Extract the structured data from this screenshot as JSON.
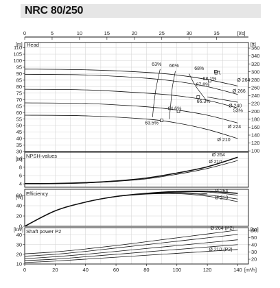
{
  "title": "NRC 80/250",
  "chart_data": [
    {
      "type": "line",
      "name": "head",
      "panel_label": "Head",
      "y_unit_left": "[m]",
      "y_unit_right": "[ft]",
      "top_axis_unit": "[l/s]",
      "top_ticks": [
        0,
        5,
        10,
        15,
        20,
        25,
        30,
        35
      ],
      "top_xlim": [
        0,
        40.8
      ],
      "xlim": [
        0,
        147
      ],
      "ylim": [
        30,
        114
      ],
      "y_ticks": [
        30,
        35,
        40,
        45,
        50,
        55,
        60,
        65,
        70,
        75,
        80,
        85,
        90,
        95,
        100,
        105,
        110
      ],
      "right_ticks": [
        100,
        120,
        140,
        160,
        180,
        200,
        220,
        240,
        260,
        280,
        300,
        320,
        340,
        360
      ],
      "series": [
        {
          "name": "Ø 264",
          "x": [
            0,
            40,
            80,
            100,
            120,
            140
          ],
          "y": [
            93.5,
            93,
            91,
            89,
            85.5,
            80.5
          ]
        },
        {
          "name": "Ø 266",
          "x": [
            0,
            40,
            80,
            100,
            120,
            140
          ],
          "y": [
            89.5,
            89,
            86.5,
            84,
            80,
            74
          ]
        },
        {
          "name": "Ø 240",
          "x": [
            0,
            40,
            80,
            100,
            120,
            140
          ],
          "y": [
            78,
            77.5,
            75,
            73,
            69.5,
            63.5
          ]
        },
        {
          "name": "53%",
          "x": [
            120,
            140
          ],
          "y": [
            72,
            68
          ]
        },
        {
          "name": "Ø 224",
          "x": [
            0,
            40,
            80,
            100,
            120,
            140
          ],
          "y": [
            67.5,
            67,
            64.5,
            62,
            58,
            52
          ]
        },
        {
          "name": "Ø 210",
          "x": [
            0,
            40,
            80,
            100,
            120,
            140
          ],
          "y": [
            58,
            57.5,
            55,
            52,
            47,
            40
          ]
        }
      ],
      "efficiency_curves": [
        {
          "name": "63%",
          "points": [
            [
              89,
              93.5
            ],
            [
              86.5,
              80
            ],
            [
              85,
              68
            ],
            [
              84,
              56.5
            ]
          ]
        },
        {
          "name": "66%",
          "points": [
            [
              99,
              92
            ],
            [
              97,
              79.5
            ],
            [
              96,
              67
            ],
            [
              95,
              55
            ]
          ]
        },
        {
          "name": "68%",
          "points": [
            [
              108,
              90
            ],
            [
              112,
              81
            ],
            [
              119,
              70
            ]
          ]
        }
      ],
      "annotations": [
        {
          "text": "63%",
          "x": 83.5,
          "y": 96
        },
        {
          "text": "66%",
          "x": 95,
          "y": 95
        },
        {
          "text": "68%",
          "x": 111.5,
          "y": 93
        },
        {
          "text": "Eff.",
          "x": 124.5,
          "y": 89.5
        },
        {
          "text": "68.1%",
          "x": 117,
          "y": 85
        },
        {
          "text": "67.8%",
          "x": 112.5,
          "y": 80.5
        },
        {
          "text": "66.3%",
          "x": 113,
          "y": 67.5
        },
        {
          "text": "64.6%",
          "x": 94,
          "y": 62
        },
        {
          "text": "63.5%",
          "x": 79,
          "y": 51
        },
        {
          "text": "53%",
          "x": 137,
          "y": 60.5
        }
      ],
      "markers": [
        {
          "x": 125.5,
          "y": 91.5
        },
        {
          "x": 121.5,
          "y": 84.5
        },
        {
          "x": 114,
          "y": 72
        },
        {
          "x": 101,
          "y": 61
        },
        {
          "x": 90,
          "y": 54
        }
      ]
    },
    {
      "type": "line",
      "name": "npsh",
      "panel_label": "NPSH-values",
      "y_unit_left": "[m]",
      "xlim": [
        0,
        147
      ],
      "ylim": [
        3.2,
        11.6
      ],
      "y_ticks": [
        4,
        6,
        8,
        10
      ],
      "series": [
        {
          "name": "Ø 264",
          "x": [
            0,
            20,
            40,
            60,
            80,
            100,
            120,
            140
          ],
          "y": [
            4.05,
            4.1,
            4.3,
            4.7,
            5.4,
            6.6,
            8.1,
            10.4
          ]
        },
        {
          "name": "Ø 210",
          "x": [
            0,
            20,
            40,
            60,
            80,
            100,
            120,
            140
          ],
          "y": [
            4.0,
            4.05,
            4.2,
            4.6,
            5.2,
            6.3,
            7.7,
            9.6
          ]
        }
      ]
    },
    {
      "type": "line",
      "name": "efficiency",
      "panel_label": "Efficiency",
      "y_unit_left": "[%]",
      "xlim": [
        0,
        147
      ],
      "ylim": [
        0,
        72
      ],
      "y_ticks": [
        0,
        20,
        40,
        60
      ],
      "series": [
        {
          "name": "Ø 264",
          "x": [
            0,
            20,
            40,
            60,
            80,
            100,
            120,
            140
          ],
          "y": [
            0,
            30,
            47,
            58,
            64,
            67.5,
            68,
            64
          ]
        },
        {
          "name": "Ø 266",
          "x": [
            0,
            20,
            40,
            60,
            80,
            100,
            120,
            140
          ],
          "y": [
            0,
            30,
            47,
            58,
            64,
            67,
            66.5,
            60.5
          ]
        },
        {
          "name": "Ø 240",
          "x": [
            0,
            20,
            40,
            60,
            80,
            100,
            120
          ],
          "y": [
            0,
            30,
            47,
            58,
            63.5,
            66,
            63
          ]
        },
        {
          "name": "Ø 224",
          "x": [
            0,
            20,
            40,
            60,
            80,
            100,
            120,
            140
          ],
          "y": [
            0,
            30,
            47,
            58,
            63,
            64.5,
            61,
            53
          ]
        },
        {
          "name": "Ø 210",
          "x": [
            0,
            20,
            40,
            60,
            80,
            100,
            120,
            140
          ],
          "y": [
            0,
            30,
            47,
            57.5,
            62.5,
            63.5,
            58.5,
            48
          ]
        }
      ]
    },
    {
      "type": "line",
      "name": "power",
      "panel_label": "Shaft power P2",
      "y_unit_left": "[kW]",
      "y_unit_right": "[hp]",
      "x_unit": "[m³/h]",
      "x_ticks": [
        0,
        20,
        40,
        60,
        80,
        100,
        120,
        140
      ],
      "xlim": [
        0,
        147
      ],
      "ylim": [
        10,
        47.5
      ],
      "y_ticks": [
        10,
        20,
        30,
        40
      ],
      "right_ticks": [
        20,
        30,
        40,
        50,
        60
      ],
      "series": [
        {
          "name": "Ø 264 (P2)",
          "x": [
            0,
            20,
            40,
            60,
            80,
            100,
            120,
            140
          ],
          "y": [
            20.5,
            22.5,
            25.5,
            29,
            33,
            37,
            41,
            45
          ]
        },
        {
          "name": "Ø 266",
          "x": [
            0,
            20,
            40,
            60,
            80,
            100,
            120,
            140
          ],
          "y": [
            18,
            20,
            23,
            26.5,
            30,
            33.5,
            37,
            40.5
          ]
        },
        {
          "name": "Ø 240",
          "x": [
            0,
            20,
            40,
            60,
            80,
            100,
            120,
            140
          ],
          "y": [
            15.5,
            17.5,
            20,
            23,
            26,
            29,
            32,
            35
          ]
        },
        {
          "name": "Ø 224",
          "x": [
            0,
            20,
            40,
            60,
            80,
            100,
            120,
            140
          ],
          "y": [
            13.5,
            15,
            17.5,
            20,
            22.5,
            25,
            27.5,
            30
          ]
        },
        {
          "name": "Ø 210 (P2)",
          "x": [
            0,
            20,
            40,
            60,
            80,
            100,
            120,
            140
          ],
          "y": [
            11.5,
            13,
            15,
            17,
            19,
            21,
            23,
            25
          ]
        }
      ]
    }
  ]
}
